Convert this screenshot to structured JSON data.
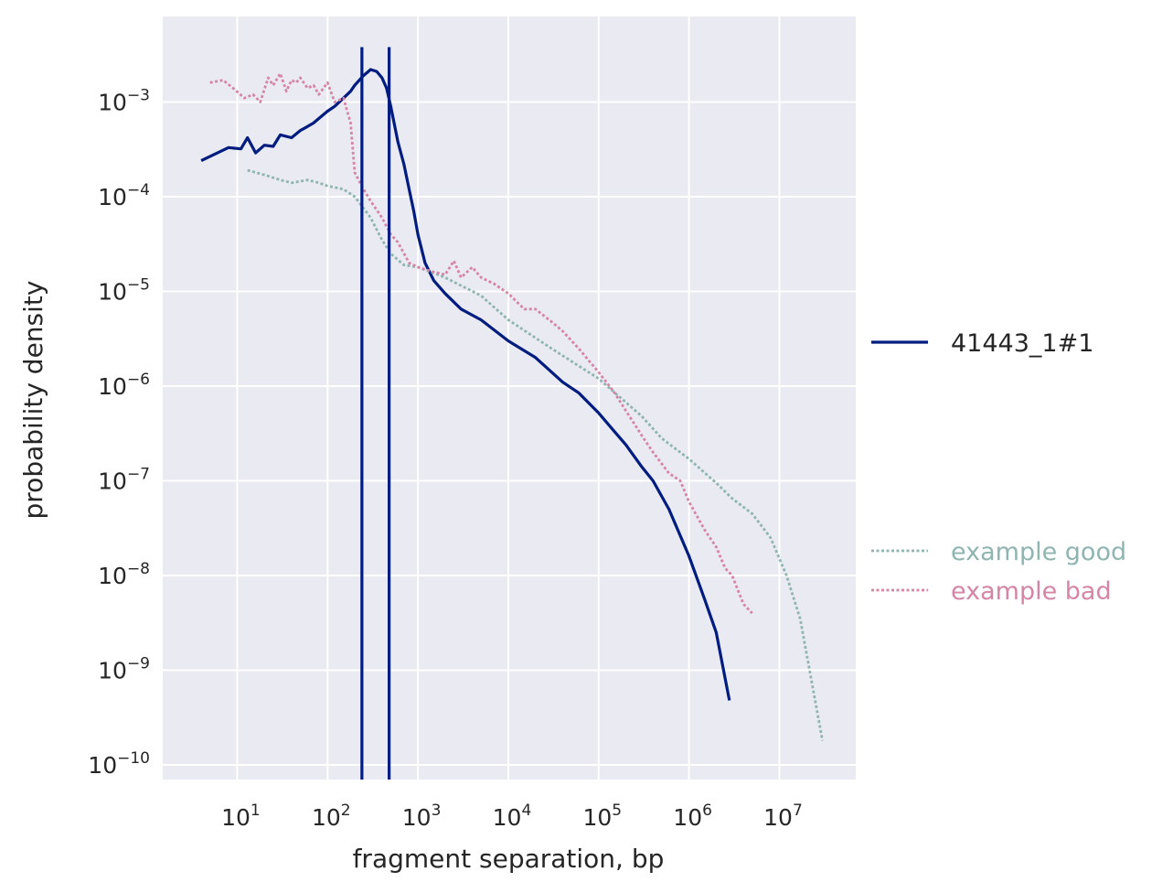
{
  "chart_data": {
    "type": "line",
    "title": "",
    "xlabel": "fragment separation, bp",
    "ylabel": "probability density",
    "x_scale": "log",
    "y_scale": "log",
    "xlim": [
      1.5,
      70000000
    ],
    "ylim": [
      7e-11,
      0.008
    ],
    "x_ticks": [
      10,
      100,
      1000,
      10000,
      100000,
      1000000,
      10000000
    ],
    "x_tick_labels": [
      {
        "base": "10",
        "exp": "1"
      },
      {
        "base": "10",
        "exp": "2"
      },
      {
        "base": "10",
        "exp": "3"
      },
      {
        "base": "10",
        "exp": "4"
      },
      {
        "base": "10",
        "exp": "5"
      },
      {
        "base": "10",
        "exp": "6"
      },
      {
        "base": "10",
        "exp": "7"
      }
    ],
    "y_ticks": [
      1e-10,
      1e-09,
      1e-08,
      1e-07,
      1e-06,
      1e-05,
      0.0001,
      0.001
    ],
    "y_tick_labels": [
      {
        "base": "10",
        "exp": "−10"
      },
      {
        "base": "10",
        "exp": "−9"
      },
      {
        "base": "10",
        "exp": "−8"
      },
      {
        "base": "10",
        "exp": "−7"
      },
      {
        "base": "10",
        "exp": "−6"
      },
      {
        "base": "10",
        "exp": "−5"
      },
      {
        "base": "10",
        "exp": "−4"
      },
      {
        "base": "10",
        "exp": "−3"
      }
    ],
    "grid": true,
    "background": "#eaeaf2",
    "grid_color": "#ffffff",
    "legend_placement": "right",
    "vertical_lines": {
      "x": [
        240,
        480
      ],
      "color": "#001c7f",
      "series": "41443_1#1"
    },
    "series": [
      {
        "name": "41443_1#1",
        "color": "#001c7f",
        "style": "solid",
        "x": [
          4,
          8,
          11,
          13,
          16,
          20,
          25,
          30,
          40,
          50,
          60,
          70,
          80,
          100,
          120,
          150,
          180,
          200,
          250,
          300,
          350,
          400,
          450,
          500,
          600,
          700,
          800,
          900,
          1000,
          1200,
          1500,
          2000,
          3000,
          5000,
          10000,
          20000,
          40000,
          60000,
          100000,
          150000,
          200000,
          300000,
          400000,
          600000,
          1000000,
          1500000,
          2000000,
          2800000
        ],
        "y": [
          0.00024,
          0.00033,
          0.00032,
          0.00042,
          0.00029,
          0.00035,
          0.00034,
          0.00045,
          0.00042,
          0.0005,
          0.00055,
          0.0006,
          0.00067,
          0.0008,
          0.0009,
          0.0011,
          0.0013,
          0.0015,
          0.0019,
          0.0022,
          0.0021,
          0.0018,
          0.0014,
          0.0009,
          0.00038,
          0.00022,
          0.00012,
          7e-05,
          4e-05,
          2e-05,
          1.3e-05,
          9.5e-06,
          6.5e-06,
          5e-06,
          3e-06,
          2e-06,
          1.1e-06,
          8.5e-07,
          5.2e-07,
          3.3e-07,
          2.4e-07,
          1.4e-07,
          1e-07,
          5e-08,
          1.6e-08,
          5.5e-09,
          2.5e-09,
          4.8e-10
        ]
      },
      {
        "name": "example good",
        "color": "#8fb5b0",
        "style": "dotted",
        "x": [
          13,
          20,
          30,
          40,
          60,
          80,
          100,
          150,
          200,
          300,
          400,
          500,
          700,
          1000,
          2000,
          5000,
          10000,
          30000,
          100000,
          300000,
          500000,
          1000000,
          2000000,
          3000000,
          5000000,
          8000000,
          12000000,
          17000000,
          30000000
        ],
        "y": [
          0.00019,
          0.00017,
          0.00015,
          0.00014,
          0.00015,
          0.00014,
          0.00013,
          0.00012,
          0.0001,
          6e-05,
          3.5e-05,
          2.5e-05,
          1.9e-05,
          1.8e-05,
          1.4e-05,
          9e-06,
          5e-06,
          2.5e-06,
          1.2e-06,
          4.8e-07,
          2.8e-07,
          1.7e-07,
          9.5e-08,
          6.5e-08,
          4.5e-08,
          2.5e-08,
          1e-08,
          3.5e-09,
          1.8e-10
        ]
      },
      {
        "name": "example bad",
        "color": "#d585a6",
        "style": "dotted",
        "x": [
          5,
          7,
          9,
          12,
          15,
          18,
          22,
          25,
          30,
          35,
          40,
          45,
          50,
          60,
          70,
          80,
          100,
          120,
          150,
          180,
          200,
          250,
          300,
          400,
          500,
          600,
          800,
          1000,
          1500,
          2000,
          2500,
          3000,
          4000,
          5000,
          7000,
          10000,
          15000,
          20000,
          30000,
          40000,
          60000,
          80000,
          100000,
          150000,
          200000,
          300000,
          400000,
          600000,
          800000,
          1000000,
          1500000,
          2000000,
          2500000,
          3000000,
          4000000,
          5000000
        ],
        "y": [
          0.0016,
          0.0017,
          0.0014,
          0.0011,
          0.0012,
          0.001,
          0.0018,
          0.0015,
          0.002,
          0.0013,
          0.0017,
          0.0016,
          0.0018,
          0.0014,
          0.0015,
          0.0012,
          0.0016,
          0.001,
          0.0011,
          0.0006,
          0.00018,
          0.00012,
          9e-05,
          6e-05,
          4e-05,
          3.3e-05,
          2e-05,
          1.8e-05,
          1.6e-05,
          1.5e-05,
          2.1e-05,
          1.4e-05,
          1.8e-05,
          1.4e-05,
          1.2e-05,
          9.5e-06,
          6.5e-06,
          6.5e-06,
          4.8e-06,
          3.8e-06,
          2.5e-06,
          1.8e-06,
          1.4e-06,
          8.5e-07,
          5.5e-07,
          3e-07,
          2e-07,
          1.2e-07,
          1e-07,
          6e-08,
          3e-08,
          2e-08,
          1.2e-08,
          1e-08,
          5e-09,
          4e-09
        ]
      }
    ]
  }
}
